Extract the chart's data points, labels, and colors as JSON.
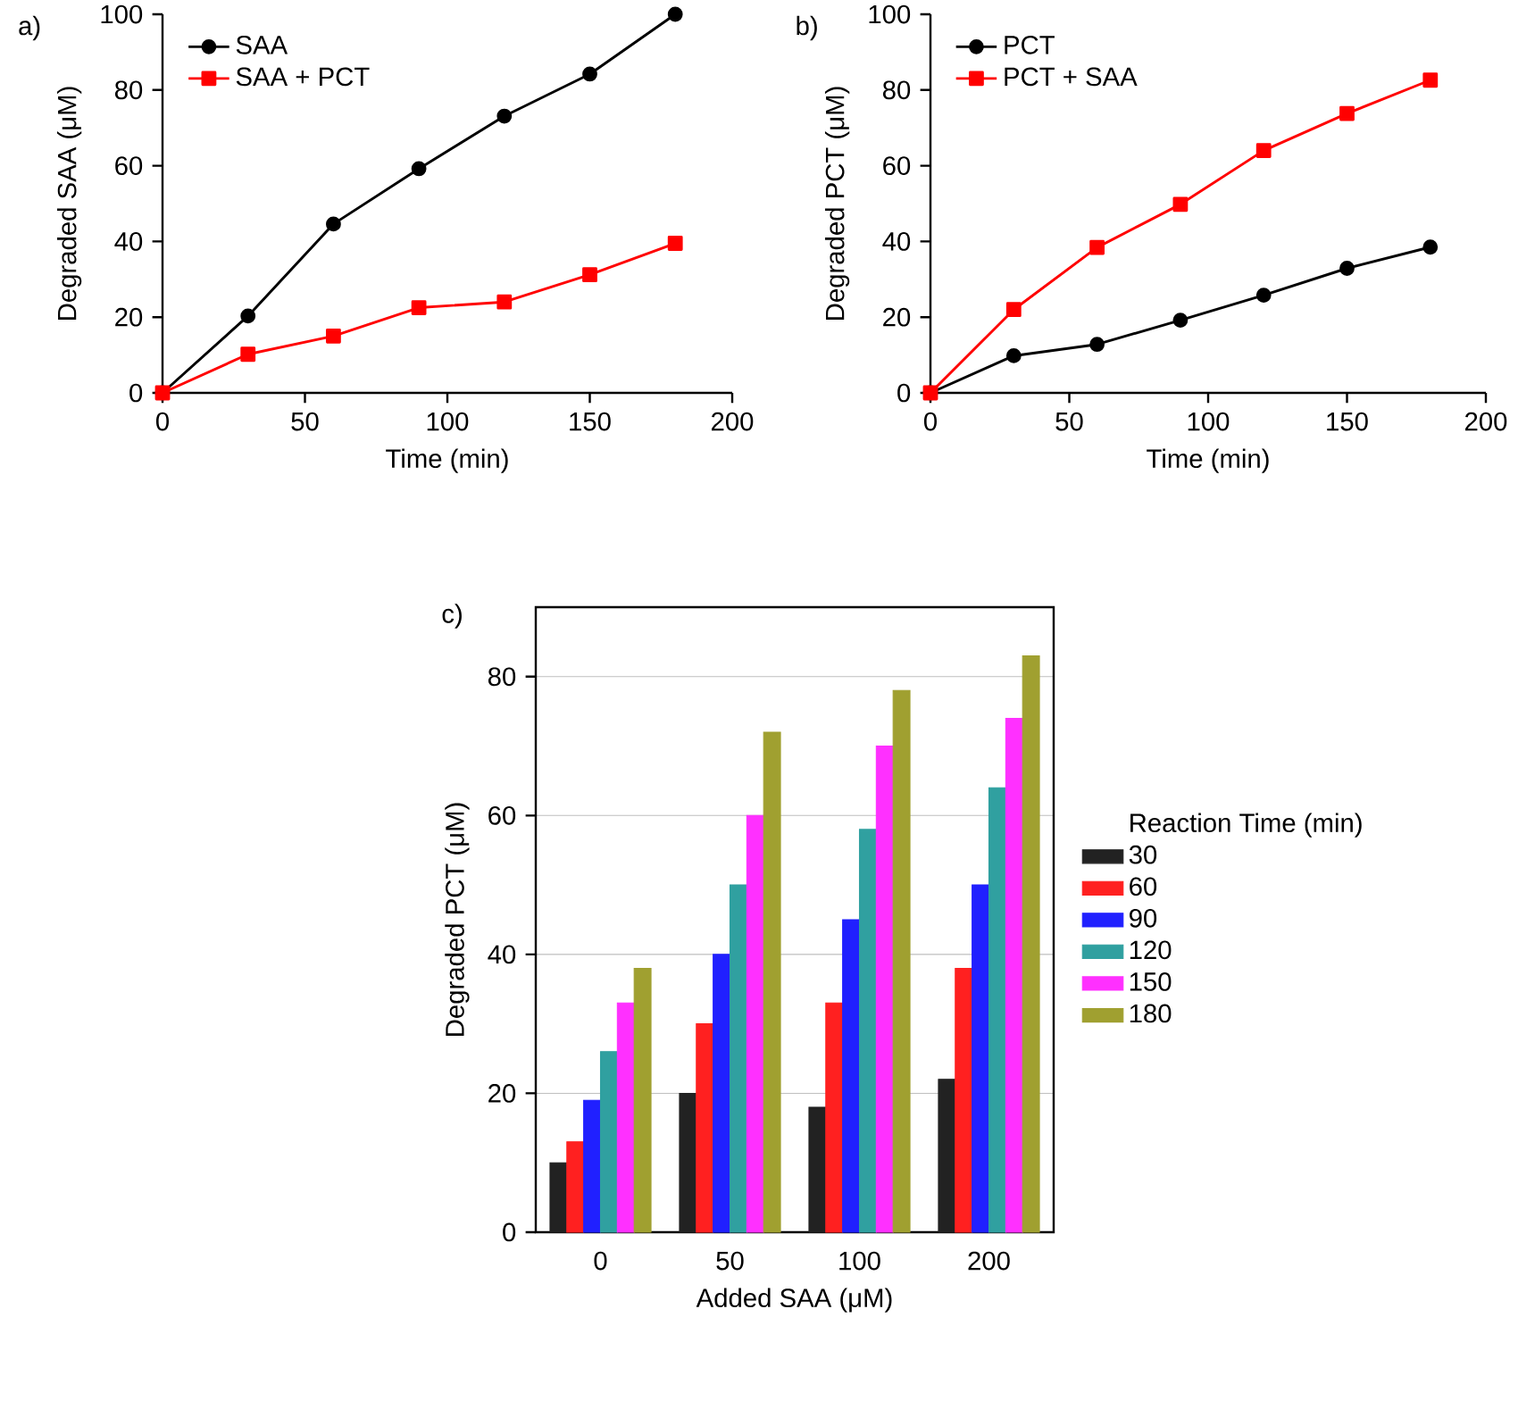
{
  "chart_data": [
    {
      "type": "line",
      "annotations": [
        "a)"
      ],
      "xlabel": "Time (min)",
      "ylabel": "Degraded SAA (μM)",
      "x": [
        0,
        30,
        60,
        90,
        120,
        150,
        180
      ],
      "xlim": [
        0,
        200
      ],
      "ylim": [
        0,
        100
      ],
      "xticks": [
        0,
        50,
        100,
        150,
        200
      ],
      "yticks": [
        0,
        20,
        40,
        60,
        80,
        100
      ],
      "grid": false,
      "legend": "top left",
      "series": [
        {
          "name": "SAA",
          "color": "#000000",
          "marker": "circle",
          "values": [
            0,
            20.3,
            44.6,
            59.2,
            73.1,
            84.2,
            100
          ]
        },
        {
          "name": "SAA + PCT",
          "color": "#ff0000",
          "marker": "square",
          "values": [
            0,
            10.2,
            15,
            22.5,
            24,
            31.2,
            39.5
          ]
        }
      ]
    },
    {
      "type": "line",
      "annotations": [
        "b)"
      ],
      "xlabel": "Time (min)",
      "ylabel": "Degraded PCT (μM)",
      "x": [
        0,
        30,
        60,
        90,
        120,
        150,
        180
      ],
      "xlim": [
        0,
        200
      ],
      "ylim": [
        0,
        100
      ],
      "xticks": [
        0,
        50,
        100,
        150,
        200
      ],
      "yticks": [
        0,
        20,
        40,
        60,
        80,
        100
      ],
      "grid": false,
      "legend": "top left",
      "series": [
        {
          "name": "PCT",
          "color": "#000000",
          "marker": "circle",
          "values": [
            0,
            9.8,
            12.8,
            19.2,
            25.8,
            32.9,
            38.5
          ]
        },
        {
          "name": "PCT + SAA",
          "color": "#ff0000",
          "marker": "square",
          "values": [
            0,
            22,
            38.4,
            49.8,
            64,
            73.8,
            82.6
          ]
        }
      ]
    },
    {
      "type": "bar",
      "annotations": [
        "c)"
      ],
      "xlabel": "Added SAA (μM)",
      "ylabel": "Degraded PCT (μM)",
      "legend_title": "Reaction Time (min)",
      "categories": [
        "0",
        "50",
        "100",
        "200"
      ],
      "ylim": [
        0,
        90
      ],
      "yticks": [
        0,
        20,
        40,
        60,
        80
      ],
      "grid": "y",
      "legend": "right",
      "series": [
        {
          "name": "30",
          "color": "#222222",
          "values": [
            10,
            20,
            18,
            22
          ]
        },
        {
          "name": "60",
          "color": "#ff2020",
          "values": [
            13,
            30,
            33,
            38
          ]
        },
        {
          "name": "90",
          "color": "#2020ff",
          "values": [
            19,
            40,
            45,
            50
          ]
        },
        {
          "name": "120",
          "color": "#30a0a0",
          "values": [
            26,
            50,
            58,
            64
          ]
        },
        {
          "name": "150",
          "color": "#ff30ff",
          "values": [
            33,
            60,
            70,
            74
          ]
        },
        {
          "name": "180",
          "color": "#a0a030",
          "values": [
            38,
            72,
            78,
            83
          ]
        }
      ]
    }
  ]
}
